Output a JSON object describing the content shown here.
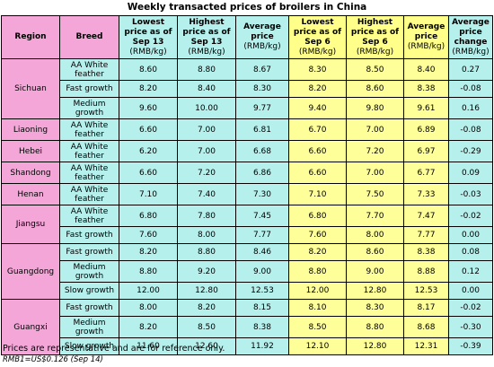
{
  "title": "Weekly transacted prices of broilers in China",
  "headers": {
    "region": "Region",
    "breed": "Breed",
    "low13": "Lowest price as of Sep 13",
    "high13": "Highest price as of Sep 13",
    "avg13": "Average price",
    "low6": "Lowest price as of Sep 6",
    "high6": "Highest price as of Sep 6",
    "avg6": "Average price",
    "change": "Average price change",
    "unit": "(RMB/kg)"
  },
  "regions": [
    {
      "name": "Sichuan",
      "rows": [
        {
          "breed": "AA White feather",
          "v": [
            "8.60",
            "8.80",
            "8.67",
            "8.30",
            "8.50",
            "8.40",
            "0.27"
          ]
        },
        {
          "breed": "Fast growth",
          "v": [
            "8.20",
            "8.40",
            "8.30",
            "8.20",
            "8.60",
            "8.38",
            "-0.08"
          ]
        },
        {
          "breed": "Medium growth",
          "v": [
            "9.60",
            "10.00",
            "9.77",
            "9.40",
            "9.80",
            "9.61",
            "0.16"
          ]
        }
      ]
    },
    {
      "name": "Liaoning",
      "rows": [
        {
          "breed": "AA White feather",
          "v": [
            "6.60",
            "7.00",
            "6.81",
            "6.70",
            "7.00",
            "6.89",
            "-0.08"
          ]
        }
      ]
    },
    {
      "name": "Hebei",
      "rows": [
        {
          "breed": "AA White feather",
          "v": [
            "6.20",
            "7.00",
            "6.68",
            "6.60",
            "7.20",
            "6.97",
            "-0.29"
          ]
        }
      ]
    },
    {
      "name": "Shandong",
      "rows": [
        {
          "breed": "AA White feather",
          "v": [
            "6.60",
            "7.20",
            "6.86",
            "6.60",
            "7.00",
            "6.77",
            "0.09"
          ]
        }
      ]
    },
    {
      "name": "Henan",
      "rows": [
        {
          "breed": "AA White feather",
          "v": [
            "7.10",
            "7.40",
            "7.30",
            "7.10",
            "7.50",
            "7.33",
            "-0.03"
          ]
        }
      ]
    },
    {
      "name": "Jiangsu",
      "rows": [
        {
          "breed": "AA White feather",
          "v": [
            "6.80",
            "7.80",
            "7.45",
            "6.80",
            "7.70",
            "7.47",
            "-0.02"
          ]
        },
        {
          "breed": "Fast growth",
          "v": [
            "7.60",
            "8.00",
            "7.77",
            "7.60",
            "8.00",
            "7.77",
            "0.00"
          ]
        }
      ]
    },
    {
      "name": "Guangdong",
      "rows": [
        {
          "breed": "Fast growth",
          "v": [
            "8.20",
            "8.80",
            "8.46",
            "8.20",
            "8.60",
            "8.38",
            "0.08"
          ]
        },
        {
          "breed": "Medium growth",
          "v": [
            "8.80",
            "9.20",
            "9.00",
            "8.80",
            "9.00",
            "8.88",
            "0.12"
          ]
        },
        {
          "breed": "Slow growth",
          "v": [
            "12.00",
            "12.80",
            "12.53",
            "12.00",
            "12.80",
            "12.53",
            "0.00"
          ]
        }
      ]
    },
    {
      "name": "Guangxi",
      "rows": [
        {
          "breed": "Fast growth",
          "v": [
            "8.00",
            "8.20",
            "8.15",
            "8.10",
            "8.30",
            "8.17",
            "-0.02"
          ]
        },
        {
          "breed": "Medium growth",
          "v": [
            "8.20",
            "8.50",
            "8.38",
            "8.50",
            "8.80",
            "8.68",
            "-0.30"
          ]
        },
        {
          "breed": "Slow growth",
          "v": [
            "11.60",
            "12.60",
            "11.92",
            "12.10",
            "12.80",
            "12.31",
            "-0.39"
          ]
        }
      ]
    }
  ],
  "notes": {
    "line1": "Prices are representative and are for reference only.",
    "line2": "RMB1=US$0.126 (Sep 14)"
  },
  "colors": {
    "region_bg": "#f4a6d8",
    "cyan_bg": "#b6f0ec",
    "yellow_bg": "#ffff99"
  }
}
